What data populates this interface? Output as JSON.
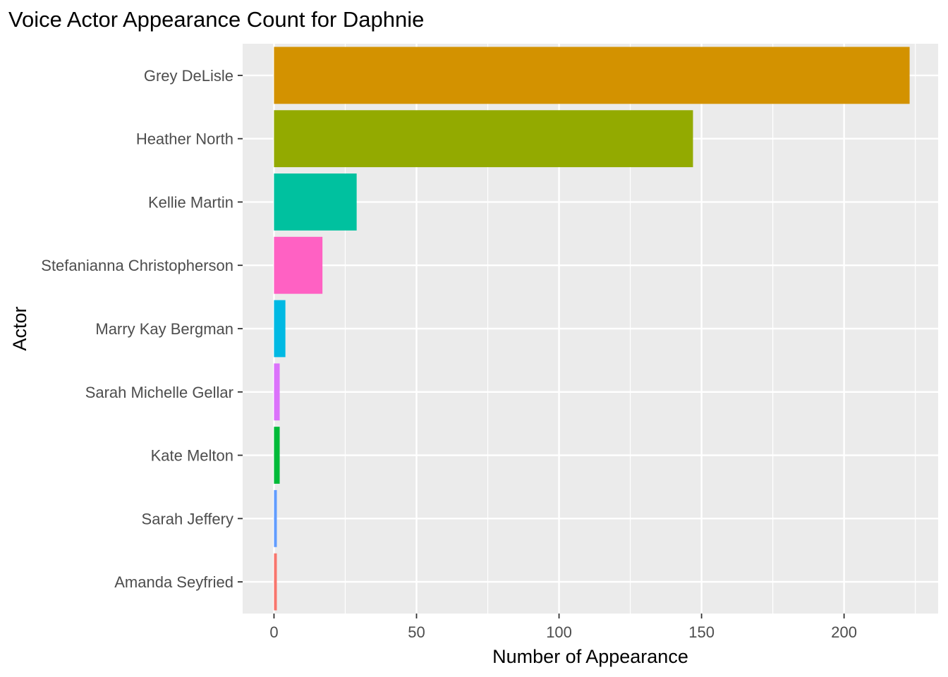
{
  "chart_data": {
    "type": "bar",
    "orientation": "horizontal",
    "title": "Voice Actor Appearance Count for Daphnie",
    "xlabel": "Number of Appearance",
    "ylabel": "Actor",
    "xlim": [
      -11,
      233
    ],
    "xticks": [
      0,
      50,
      100,
      150,
      200
    ],
    "grid": true,
    "legend": "none",
    "categories": [
      "Grey DeLisle",
      "Heather North",
      "Kellie Martin",
      "Stefanianna Christopherson",
      "Marry Kay Bergman",
      "Sarah Michelle Gellar",
      "Kate Melton",
      "Sarah Jeffery",
      "Amanda Seyfried"
    ],
    "values": [
      223,
      147,
      29,
      17,
      4,
      2,
      2,
      1,
      1
    ],
    "colors": [
      "#D39200",
      "#93AA00",
      "#00C19F",
      "#FF61C3",
      "#00B9E3",
      "#DB72FB",
      "#00BA38",
      "#619CFF",
      "#F8766D"
    ]
  }
}
